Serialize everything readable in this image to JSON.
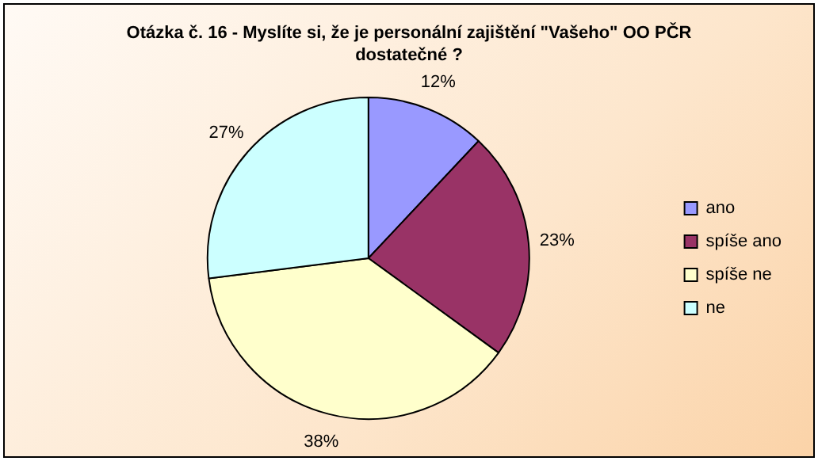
{
  "chart_data": {
    "type": "pie",
    "title": "Otázka č. 16 - Myslíte si, že je personální zajištění \"Vašeho\" OO PČR dostatečné ?",
    "categories": [
      "ano",
      "spíše ano",
      "spíše ne",
      "ne"
    ],
    "values": [
      12,
      23,
      38,
      27
    ],
    "value_labels": [
      "12%",
      "23%",
      "38%",
      "27%"
    ],
    "colors": [
      "#9999ff",
      "#993366",
      "#ffffcc",
      "#ccffff"
    ],
    "legend": "right"
  }
}
